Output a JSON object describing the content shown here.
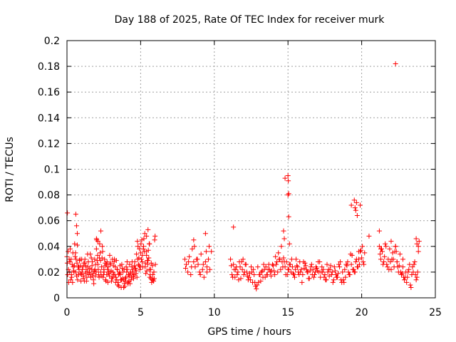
{
  "chart_data": {
    "type": "scatter",
    "title": "Day 188 of 2025, Rate Of TEC Index for receiver murk",
    "xlabel": "GPS time / hours",
    "ylabel": "ROTI / TECUs",
    "xlim": [
      0,
      25
    ],
    "ylim": [
      0,
      0.2
    ],
    "xticks": [
      0,
      5,
      10,
      15,
      20,
      25
    ],
    "xtick_labels": [
      "0",
      "5",
      "10",
      "15",
      "20",
      "25"
    ],
    "yticks": [
      0,
      0.02,
      0.04,
      0.06,
      0.08,
      0.1,
      0.12,
      0.14,
      0.16,
      0.18,
      0.2
    ],
    "ytick_labels": [
      "0",
      "0.02",
      "0.04",
      "0.06",
      "0.08",
      "0.1",
      "0.12",
      "0.14",
      "0.16",
      "0.18",
      "0.2"
    ],
    "grid": true,
    "marker": "+",
    "color": "#ff0000",
    "series": [
      {
        "x": [
          0.0,
          0.1,
          0.2,
          0.3,
          0.4,
          0.5,
          0.6,
          0.7,
          0.8,
          0.9,
          1.0,
          1.1,
          1.2,
          1.3,
          1.4,
          1.5,
          1.6,
          1.7,
          1.8,
          1.9,
          2.0,
          2.1,
          2.2,
          2.3,
          2.4,
          2.5,
          2.6,
          2.7,
          2.8,
          2.9,
          3.0,
          3.1,
          3.2,
          3.3,
          3.4,
          3.5,
          3.6,
          3.7,
          3.8,
          3.9,
          4.0,
          4.1,
          4.2,
          4.3,
          4.4,
          4.5,
          4.6,
          4.7,
          4.8,
          4.9,
          5.0,
          5.1,
          5.2,
          5.3,
          5.4,
          5.5,
          5.6,
          5.7,
          5.8,
          5.9,
          6.0,
          0.05,
          0.15,
          0.25,
          0.35,
          0.45,
          0.55,
          0.65,
          0.75,
          0.85,
          0.95,
          1.05,
          1.15,
          1.25,
          1.35,
          1.45,
          1.55,
          1.65,
          1.75,
          1.85,
          1.95,
          2.05,
          2.15,
          2.25,
          2.35,
          2.45,
          2.55,
          2.65,
          2.75,
          2.85,
          2.95,
          3.05,
          3.15,
          3.25,
          3.35,
          3.45,
          3.55,
          3.65,
          3.75,
          3.85,
          3.95,
          4.05,
          4.15,
          4.25,
          4.35,
          4.45,
          4.55,
          4.65,
          4.75,
          4.85,
          4.95,
          5.05,
          5.15,
          5.25,
          5.35,
          5.45,
          5.55,
          5.65,
          5.75,
          5.85,
          5.95,
          0.02,
          0.12,
          0.22,
          0.32,
          0.42,
          0.52,
          0.62,
          0.72,
          0.82,
          0.92,
          1.02,
          1.12,
          1.22,
          1.32,
          1.42,
          1.52,
          1.62,
          1.72,
          1.82,
          1.92,
          2.02,
          2.12,
          2.22,
          2.32,
          2.42,
          2.52,
          2.62,
          2.72,
          2.82,
          2.92,
          3.02,
          3.12,
          3.22,
          3.32,
          3.42,
          3.52,
          3.62,
          3.72,
          3.82,
          3.92,
          4.02,
          4.12,
          4.22,
          4.32,
          4.42,
          4.52,
          4.62,
          4.72,
          4.82,
          4.92,
          5.02,
          5.12,
          5.22,
          5.32,
          5.42,
          5.52,
          5.62,
          5.72,
          5.82,
          5.92,
          0.08,
          0.18,
          0.28,
          0.38,
          0.48,
          0.58,
          0.68,
          0.78,
          0.88,
          0.98,
          1.08,
          1.18,
          1.28,
          1.38,
          1.48,
          1.58,
          1.68,
          1.78,
          1.88,
          1.98,
          2.08,
          2.18,
          2.28,
          2.38,
          2.48,
          2.58,
          2.68,
          2.78,
          2.88,
          2.98,
          3.08,
          3.18,
          3.28,
          3.38,
          3.48,
          3.58,
          3.68,
          3.78,
          3.88,
          3.98,
          4.08,
          4.18,
          4.28,
          4.38,
          4.48,
          4.58,
          4.68,
          4.78,
          4.88,
          4.98,
          5.08,
          5.18,
          5.28,
          5.38,
          5.48,
          5.58,
          5.68,
          5.78,
          5.88,
          5.98,
          0.03,
          0.6,
          0.65,
          0.7,
          2.0,
          2.1,
          2.3,
          5.4,
          5.5,
          5.6,
          8.0,
          8.1,
          8.2,
          8.3,
          8.4,
          8.5,
          8.6,
          8.7,
          8.8,
          8.9,
          9.0,
          9.1,
          9.2,
          9.3,
          9.4,
          9.5,
          9.6,
          9.7,
          9.8,
          8.05,
          8.25,
          8.45,
          8.65,
          8.85,
          9.05,
          9.25,
          9.45,
          9.65,
          8.6,
          9.4,
          9.5,
          11.1,
          11.2,
          11.3,
          11.4,
          11.5,
          11.6,
          11.7,
          11.8,
          11.9,
          12.0,
          12.1,
          12.2,
          12.3,
          12.4,
          12.5,
          12.6,
          12.7,
          12.8,
          12.9,
          13.0,
          13.1,
          13.2,
          13.3,
          13.4,
          13.5,
          13.6,
          13.7,
          13.8,
          13.9,
          14.0,
          14.1,
          14.2,
          14.3,
          14.4,
          14.5,
          14.6,
          14.7,
          14.8,
          14.9,
          15.0,
          15.1,
          15.2,
          15.3,
          15.4,
          15.5,
          15.6,
          15.7,
          15.8,
          15.9,
          16.0,
          16.1,
          16.2,
          16.3,
          16.4,
          16.5,
          16.6,
          16.7,
          16.8,
          16.9,
          17.0,
          17.1,
          17.2,
          17.3,
          17.4,
          17.5,
          17.6,
          17.7,
          17.8,
          17.9,
          18.0,
          18.1,
          18.2,
          18.3,
          18.4,
          18.5,
          18.6,
          18.7,
          18.8,
          18.9,
          19.0,
          19.1,
          19.2,
          19.3,
          19.4,
          19.5,
          19.6,
          19.7,
          19.8,
          19.9,
          20.0,
          20.1,
          20.2,
          11.15,
          11.35,
          11.55,
          11.75,
          11.95,
          12.15,
          12.35,
          12.55,
          12.75,
          12.95,
          13.15,
          13.35,
          13.55,
          13.75,
          13.95,
          14.15,
          14.35,
          14.55,
          14.75,
          14.95,
          15.15,
          15.35,
          15.55,
          15.75,
          15.95,
          16.15,
          16.35,
          16.55,
          16.75,
          16.95,
          17.15,
          17.35,
          17.55,
          17.75,
          17.95,
          18.15,
          18.35,
          18.55,
          18.75,
          18.95,
          19.15,
          19.35,
          19.55,
          19.75,
          19.95,
          20.15,
          11.25,
          11.45,
          11.65,
          11.85,
          12.05,
          12.25,
          12.45,
          12.65,
          12.85,
          13.05,
          13.25,
          13.45,
          13.65,
          13.85,
          14.05,
          14.25,
          14.45,
          14.65,
          14.85,
          15.05,
          15.25,
          15.45,
          15.65,
          15.85,
          16.05,
          16.25,
          16.45,
          16.65,
          16.85,
          17.05,
          17.25,
          17.45,
          17.65,
          17.85,
          18.05,
          18.25,
          18.45,
          18.65,
          18.85,
          19.05,
          19.25,
          19.45,
          19.65,
          19.85,
          20.05,
          11.3,
          14.7,
          14.75,
          14.8,
          15.0,
          15.02,
          15.05,
          15.0,
          15.05,
          15.1,
          19.3,
          19.5,
          19.55,
          19.6,
          19.65,
          19.7,
          19.8,
          19.9,
          20.5,
          21.2,
          21.3,
          21.4,
          21.5,
          21.6,
          21.7,
          21.8,
          21.9,
          22.0,
          22.1,
          22.2,
          22.3,
          22.4,
          22.5,
          22.6,
          22.7,
          22.8,
          22.9,
          23.0,
          23.1,
          23.2,
          23.3,
          23.4,
          23.5,
          23.6,
          23.7,
          23.8,
          23.9,
          21.25,
          21.45,
          21.65,
          21.85,
          22.05,
          22.25,
          22.45,
          22.65,
          22.85,
          23.05,
          23.25,
          23.45,
          23.65,
          23.85,
          21.35,
          21.55,
          21.75,
          21.95,
          22.15,
          22.35,
          22.55,
          22.75,
          22.95,
          23.15,
          23.35,
          23.55,
          23.75,
          21.2,
          21.3,
          22.0,
          22.3,
          22.4,
          22.8,
          23.7,
          23.75,
          23.85,
          22.3
        ],
        "y": [
          0.032,
          0.022,
          0.028,
          0.018,
          0.035,
          0.025,
          0.02,
          0.041,
          0.024,
          0.019,
          0.03,
          0.015,
          0.027,
          0.022,
          0.034,
          0.02,
          0.018,
          0.025,
          0.014,
          0.022,
          0.038,
          0.026,
          0.031,
          0.02,
          0.04,
          0.022,
          0.027,
          0.018,
          0.024,
          0.033,
          0.021,
          0.016,
          0.028,
          0.012,
          0.022,
          0.018,
          0.025,
          0.014,
          0.02,
          0.011,
          0.016,
          0.022,
          0.013,
          0.019,
          0.024,
          0.017,
          0.028,
          0.021,
          0.03,
          0.025,
          0.035,
          0.028,
          0.04,
          0.024,
          0.033,
          0.029,
          0.022,
          0.015,
          0.025,
          0.02,
          0.026,
          0.018,
          0.03,
          0.014,
          0.026,
          0.021,
          0.032,
          0.017,
          0.024,
          0.029,
          0.013,
          0.022,
          0.027,
          0.019,
          0.016,
          0.028,
          0.023,
          0.031,
          0.017,
          0.021,
          0.026,
          0.029,
          0.018,
          0.035,
          0.024,
          0.016,
          0.03,
          0.013,
          0.022,
          0.019,
          0.027,
          0.015,
          0.025,
          0.018,
          0.029,
          0.01,
          0.019,
          0.014,
          0.023,
          0.008,
          0.015,
          0.02,
          0.011,
          0.026,
          0.014,
          0.02,
          0.018,
          0.023,
          0.016,
          0.026,
          0.022,
          0.03,
          0.024,
          0.036,
          0.019,
          0.029,
          0.031,
          0.018,
          0.012,
          0.014,
          0.045,
          0.027,
          0.012,
          0.038,
          0.016,
          0.024,
          0.042,
          0.03,
          0.014,
          0.022,
          0.025,
          0.02,
          0.017,
          0.03,
          0.013,
          0.024,
          0.02,
          0.016,
          0.028,
          0.011,
          0.017,
          0.045,
          0.022,
          0.042,
          0.017,
          0.036,
          0.02,
          0.014,
          0.028,
          0.02,
          0.026,
          0.013,
          0.02,
          0.03,
          0.016,
          0.022,
          0.009,
          0.018,
          0.026,
          0.014,
          0.009,
          0.024,
          0.012,
          0.017,
          0.02,
          0.028,
          0.015,
          0.023,
          0.034,
          0.04,
          0.038,
          0.042,
          0.033,
          0.046,
          0.027,
          0.021,
          0.037,
          0.016,
          0.027,
          0.018,
          0.015,
          0.036,
          0.02,
          0.03,
          0.012,
          0.02,
          0.035,
          0.027,
          0.018,
          0.03,
          0.018,
          0.024,
          0.013,
          0.025,
          0.02,
          0.018,
          0.034,
          0.022,
          0.019,
          0.03,
          0.02,
          0.033,
          0.016,
          0.029,
          0.031,
          0.018,
          0.025,
          0.026,
          0.012,
          0.017,
          0.02,
          0.03,
          0.018,
          0.024,
          0.014,
          0.012,
          0.02,
          0.008,
          0.015,
          0.022,
          0.013,
          0.028,
          0.018,
          0.011,
          0.016,
          0.022,
          0.025,
          0.019,
          0.044,
          0.031,
          0.024,
          0.045,
          0.038,
          0.05,
          0.036,
          0.026,
          0.042,
          0.022,
          0.014,
          0.013,
          0.048,
          0.066,
          0.065,
          0.056,
          0.05,
          0.046,
          0.044,
          0.052,
          0.048,
          0.053,
          0.042,
          0.03,
          0.026,
          0.02,
          0.032,
          0.018,
          0.038,
          0.028,
          0.024,
          0.03,
          0.026,
          0.02,
          0.034,
          0.022,
          0.016,
          0.028,
          0.024,
          0.03,
          0.022,
          0.036,
          0.023,
          0.028,
          0.024,
          0.04,
          0.03,
          0.018,
          0.026,
          0.036,
          0.04,
          0.045,
          0.05,
          0.02,
          0.03,
          0.018,
          0.026,
          0.016,
          0.024,
          0.02,
          0.028,
          0.015,
          0.022,
          0.018,
          0.026,
          0.02,
          0.014,
          0.019,
          0.024,
          0.012,
          0.018,
          0.009,
          0.01,
          0.012,
          0.018,
          0.02,
          0.016,
          0.022,
          0.024,
          0.018,
          0.026,
          0.02,
          0.021,
          0.025,
          0.018,
          0.026,
          0.02,
          0.03,
          0.022,
          0.028,
          0.031,
          0.024,
          0.028,
          0.022,
          0.026,
          0.02,
          0.024,
          0.018,
          0.022,
          0.025,
          0.02,
          0.028,
          0.022,
          0.018,
          0.023,
          0.025,
          0.02,
          0.015,
          0.021,
          0.026,
          0.022,
          0.018,
          0.024,
          0.021,
          0.02,
          0.016,
          0.024,
          0.022,
          0.018,
          0.014,
          0.02,
          0.017,
          0.025,
          0.02,
          0.014,
          0.021,
          0.016,
          0.019,
          0.024,
          0.014,
          0.02,
          0.012,
          0.016,
          0.025,
          0.02,
          0.018,
          0.026,
          0.022,
          0.02,
          0.028,
          0.024,
          0.03,
          0.036,
          0.031,
          0.028,
          0.035,
          0.025,
          0.022,
          0.018,
          0.024,
          0.03,
          0.026,
          0.016,
          0.02,
          0.012,
          0.024,
          0.013,
          0.026,
          0.018,
          0.022,
          0.026,
          0.032,
          0.035,
          0.04,
          0.028,
          0.018,
          0.026,
          0.019,
          0.03,
          0.018,
          0.012,
          0.027,
          0.02,
          0.024,
          0.016,
          0.023,
          0.028,
          0.02,
          0.014,
          0.022,
          0.018,
          0.024,
          0.016,
          0.028,
          0.014,
          0.026,
          0.018,
          0.033,
          0.02,
          0.024,
          0.037,
          0.026,
          0.016,
          0.022,
          0.014,
          0.028,
          0.02,
          0.017,
          0.014,
          0.022,
          0.007,
          0.018,
          0.021,
          0.016,
          0.022,
          0.017,
          0.021,
          0.028,
          0.03,
          0.024,
          0.018,
          0.022,
          0.03,
          0.016,
          0.024,
          0.02,
          0.028,
          0.022,
          0.015,
          0.018,
          0.02,
          0.028,
          0.02,
          0.016,
          0.026,
          0.022,
          0.012,
          0.018,
          0.026,
          0.012,
          0.022,
          0.028,
          0.034,
          0.022,
          0.03,
          0.026,
          0.04,
          0.055,
          0.052,
          0.046,
          0.093,
          0.095,
          0.091,
          0.081,
          0.08,
          0.063,
          0.042,
          0.072,
          0.076,
          0.07,
          0.068,
          0.074,
          0.064,
          0.036,
          0.072,
          0.048,
          0.04,
          0.03,
          0.036,
          0.028,
          0.042,
          0.026,
          0.03,
          0.038,
          0.022,
          0.035,
          0.024,
          0.04,
          0.028,
          0.02,
          0.034,
          0.018,
          0.024,
          0.014,
          0.02,
          0.016,
          0.022,
          0.01,
          0.018,
          0.02,
          0.028,
          0.014,
          0.02,
          0.044,
          0.034,
          0.026,
          0.04,
          0.022,
          0.03,
          0.036,
          0.024,
          0.02,
          0.016,
          0.012,
          0.026,
          0.024,
          0.018,
          0.036,
          0.038,
          0.032,
          0.024,
          0.028,
          0.03,
          0.036,
          0.025,
          0.019,
          0.016,
          0.02,
          0.008,
          0.026,
          0.016,
          0.052,
          0.038,
          0.044,
          0.04,
          0.028,
          0.03,
          0.046,
          0.042,
          0.04,
          0.182
        ]
      }
    ]
  }
}
